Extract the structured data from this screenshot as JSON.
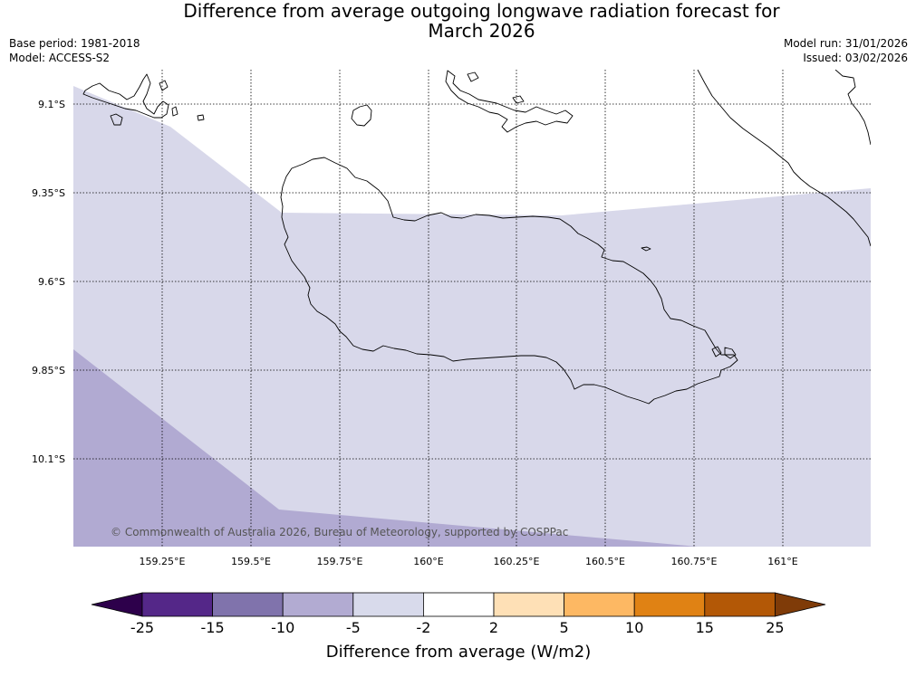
{
  "header": {
    "title_line1": "Difference from average outgoing longwave radiation forecast for",
    "title_line2": "March 2026",
    "base_period": "Base period: 1981-2018",
    "model": "Model: ACCESS-S2",
    "model_run": "Model run: 31/01/2026",
    "issued": "Issued: 03/02/2026"
  },
  "map": {
    "lat_labels": [
      "9.1°S",
      "9.35°S",
      "9.6°S",
      "9.85°S",
      "10.1°S"
    ],
    "lon_labels": [
      "159.25°E",
      "159.5°E",
      "159.75°E",
      "160°E",
      "160.25°E",
      "160.5°E",
      "160.75°E",
      "161°E"
    ],
    "copyright": "© Commonwealth of Australia 2026, Bureau of Meteorology, supported by COSPPac",
    "fill_colors": {
      "light": "#d8d8ea",
      "mid": "#b1aad2"
    }
  },
  "colorbar": {
    "title": "Difference from average (W/m2)",
    "tick_labels": [
      "-25",
      "-15",
      "-10",
      "-5",
      "-2",
      "2",
      "5",
      "10",
      "15",
      "25"
    ],
    "colors": [
      "#2d004b",
      "#542788",
      "#8073ac",
      "#b2abd2",
      "#d8daeb",
      "#ffffff",
      "#fee0b6",
      "#fdb863",
      "#e08214",
      "#b35806",
      "#7f3b08"
    ]
  }
}
